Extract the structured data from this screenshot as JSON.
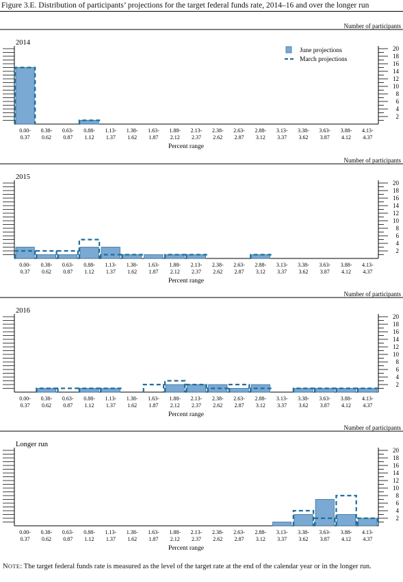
{
  "figure": {
    "title": "Figure 3.E. Distribution of participants’ projections for the target federal funds rate, 2014–16 and over the longer run"
  },
  "note": {
    "label_lead": "N",
    "label_rest": "OTE",
    "text": ": The target federal funds rate is measured as the level of the target rate at the end of the calendar year or in the longer run."
  },
  "colors": {
    "june_fill": "#7aa9d3",
    "june_stroke": "#3a6f9a",
    "march": "#1d6e9b"
  },
  "chart_data": [
    {
      "type": "bar",
      "panel_label": "2014",
      "units_label": "Number of participants",
      "xlabel": "Percent range",
      "ylim": [
        0,
        20
      ],
      "y_ticks": [
        2,
        4,
        6,
        8,
        10,
        12,
        14,
        16,
        18,
        20
      ],
      "categories": [
        [
          "0.00-",
          "0.37"
        ],
        [
          "0.38-",
          "0.62"
        ],
        [
          "0.63-",
          "0.87"
        ],
        [
          "0.88-",
          "1.12"
        ],
        [
          "1.13-",
          "1.37"
        ],
        [
          "1.38-",
          "1.62"
        ],
        [
          "1.63-",
          "1.87"
        ],
        [
          "1.88-",
          "2.12"
        ],
        [
          "2.13-",
          "2.37"
        ],
        [
          "2.38-",
          "2.62"
        ],
        [
          "2.63-",
          "2.87"
        ],
        [
          "2.88-",
          "3.12"
        ],
        [
          "3.13-",
          "3.37"
        ],
        [
          "3.38-",
          "3.62"
        ],
        [
          "3.63-",
          "3.87"
        ],
        [
          "3.88-",
          "4.12"
        ],
        [
          "4.13-",
          "4.37"
        ]
      ],
      "legend": {
        "position": "top-right",
        "entries": [
          "June projections",
          "March projections"
        ]
      },
      "series": [
        {
          "name": "June projections",
          "style": "bar",
          "values": [
            15,
            0,
            0,
            1,
            0,
            0,
            0,
            0,
            0,
            0,
            0,
            0,
            0,
            0,
            0,
            0,
            0
          ]
        },
        {
          "name": "March projections",
          "style": "dashed-outline",
          "values": [
            15,
            0,
            0,
            1,
            0,
            0,
            0,
            0,
            0,
            0,
            0,
            0,
            0,
            0,
            0,
            0,
            0
          ]
        }
      ]
    },
    {
      "type": "bar",
      "panel_label": "2015",
      "units_label": "Number of participants",
      "xlabel": "Percent range",
      "ylim": [
        0,
        20
      ],
      "y_ticks": [
        2,
        4,
        6,
        8,
        10,
        12,
        14,
        16,
        18,
        20
      ],
      "categories": [
        [
          "0.00-",
          "0.37"
        ],
        [
          "0.38-",
          "0.62"
        ],
        [
          "0.63-",
          "0.87"
        ],
        [
          "0.88-",
          "1.12"
        ],
        [
          "1.13-",
          "1.37"
        ],
        [
          "1.38-",
          "1.62"
        ],
        [
          "1.63-",
          "1.87"
        ],
        [
          "1.88-",
          "2.12"
        ],
        [
          "2.13-",
          "2.37"
        ],
        [
          "2.38-",
          "2.62"
        ],
        [
          "2.63-",
          "2.87"
        ],
        [
          "2.88-",
          "3.12"
        ],
        [
          "3.13-",
          "3.37"
        ],
        [
          "3.38-",
          "3.62"
        ],
        [
          "3.63-",
          "3.87"
        ],
        [
          "3.88-",
          "4.12"
        ],
        [
          "4.13-",
          "4.37"
        ]
      ],
      "series": [
        {
          "name": "June projections",
          "style": "bar",
          "values": [
            3,
            1,
            1,
            3,
            3,
            1,
            1,
            1,
            1,
            0,
            0,
            1,
            0,
            0,
            0,
            0,
            0
          ]
        },
        {
          "name": "March projections",
          "style": "dashed-outline",
          "values": [
            2,
            2,
            2,
            5,
            1,
            1,
            0,
            1,
            1,
            0,
            0,
            1,
            0,
            0,
            0,
            0,
            0
          ]
        }
      ]
    },
    {
      "type": "bar",
      "panel_label": "2016",
      "units_label": "Number of participants",
      "xlabel": "Percent range",
      "ylim": [
        0,
        20
      ],
      "y_ticks": [
        2,
        4,
        6,
        8,
        10,
        12,
        14,
        16,
        18,
        20
      ],
      "categories": [
        [
          "0.00-",
          "0.37"
        ],
        [
          "0.38-",
          "0.62"
        ],
        [
          "0.63-",
          "0.87"
        ],
        [
          "0.88-",
          "1.12"
        ],
        [
          "1.13-",
          "1.37"
        ],
        [
          "1.38-",
          "1.62"
        ],
        [
          "1.63-",
          "1.87"
        ],
        [
          "1.88-",
          "2.12"
        ],
        [
          "2.13-",
          "2.37"
        ],
        [
          "2.38-",
          "2.62"
        ],
        [
          "2.63-",
          "2.87"
        ],
        [
          "2.88-",
          "3.12"
        ],
        [
          "3.13-",
          "3.37"
        ],
        [
          "3.38-",
          "3.62"
        ],
        [
          "3.63-",
          "3.87"
        ],
        [
          "3.88-",
          "4.12"
        ],
        [
          "4.13-",
          "4.37"
        ]
      ],
      "series": [
        {
          "name": "June projections",
          "style": "bar",
          "values": [
            0,
            1,
            0,
            1,
            1,
            0,
            0,
            2,
            2,
            2,
            1,
            2,
            0,
            1,
            1,
            1,
            1
          ]
        },
        {
          "name": "March projections",
          "style": "dashed-outline",
          "values": [
            0,
            1,
            1,
            1,
            1,
            0,
            2,
            3,
            2,
            1,
            2,
            1,
            0,
            1,
            1,
            1,
            1
          ]
        }
      ]
    },
    {
      "type": "bar",
      "panel_label": "Longer run",
      "units_label": "Number of participants",
      "xlabel": "Percent range",
      "ylim": [
        0,
        20
      ],
      "y_ticks": [
        2,
        4,
        6,
        8,
        10,
        12,
        14,
        16,
        18,
        20
      ],
      "categories": [
        [
          "0.00-",
          "0.37"
        ],
        [
          "0.38-",
          "0.62"
        ],
        [
          "0.63-",
          "0.87"
        ],
        [
          "0.88-",
          "1.12"
        ],
        [
          "1.13-",
          "1.37"
        ],
        [
          "1.38-",
          "1.62"
        ],
        [
          "1.63-",
          "1.87"
        ],
        [
          "1.88-",
          "2.12"
        ],
        [
          "2.13-",
          "2.37"
        ],
        [
          "2.38-",
          "2.62"
        ],
        [
          "2.63-",
          "2.87"
        ],
        [
          "2.88-",
          "3.12"
        ],
        [
          "3.13-",
          "3.37"
        ],
        [
          "3.38-",
          "3.62"
        ],
        [
          "3.63-",
          "3.87"
        ],
        [
          "3.88-",
          "4.12"
        ],
        [
          "4.13-",
          "4.37"
        ]
      ],
      "series": [
        {
          "name": "June projections",
          "style": "bar",
          "values": [
            0,
            0,
            0,
            0,
            0,
            0,
            0,
            0,
            0,
            0,
            0,
            0,
            1,
            3,
            7,
            3,
            2
          ]
        },
        {
          "name": "March projections",
          "style": "dashed-outline",
          "values": [
            0,
            0,
            0,
            0,
            0,
            0,
            0,
            0,
            0,
            0,
            0,
            0,
            0,
            4,
            2,
            8,
            2
          ]
        }
      ]
    }
  ]
}
